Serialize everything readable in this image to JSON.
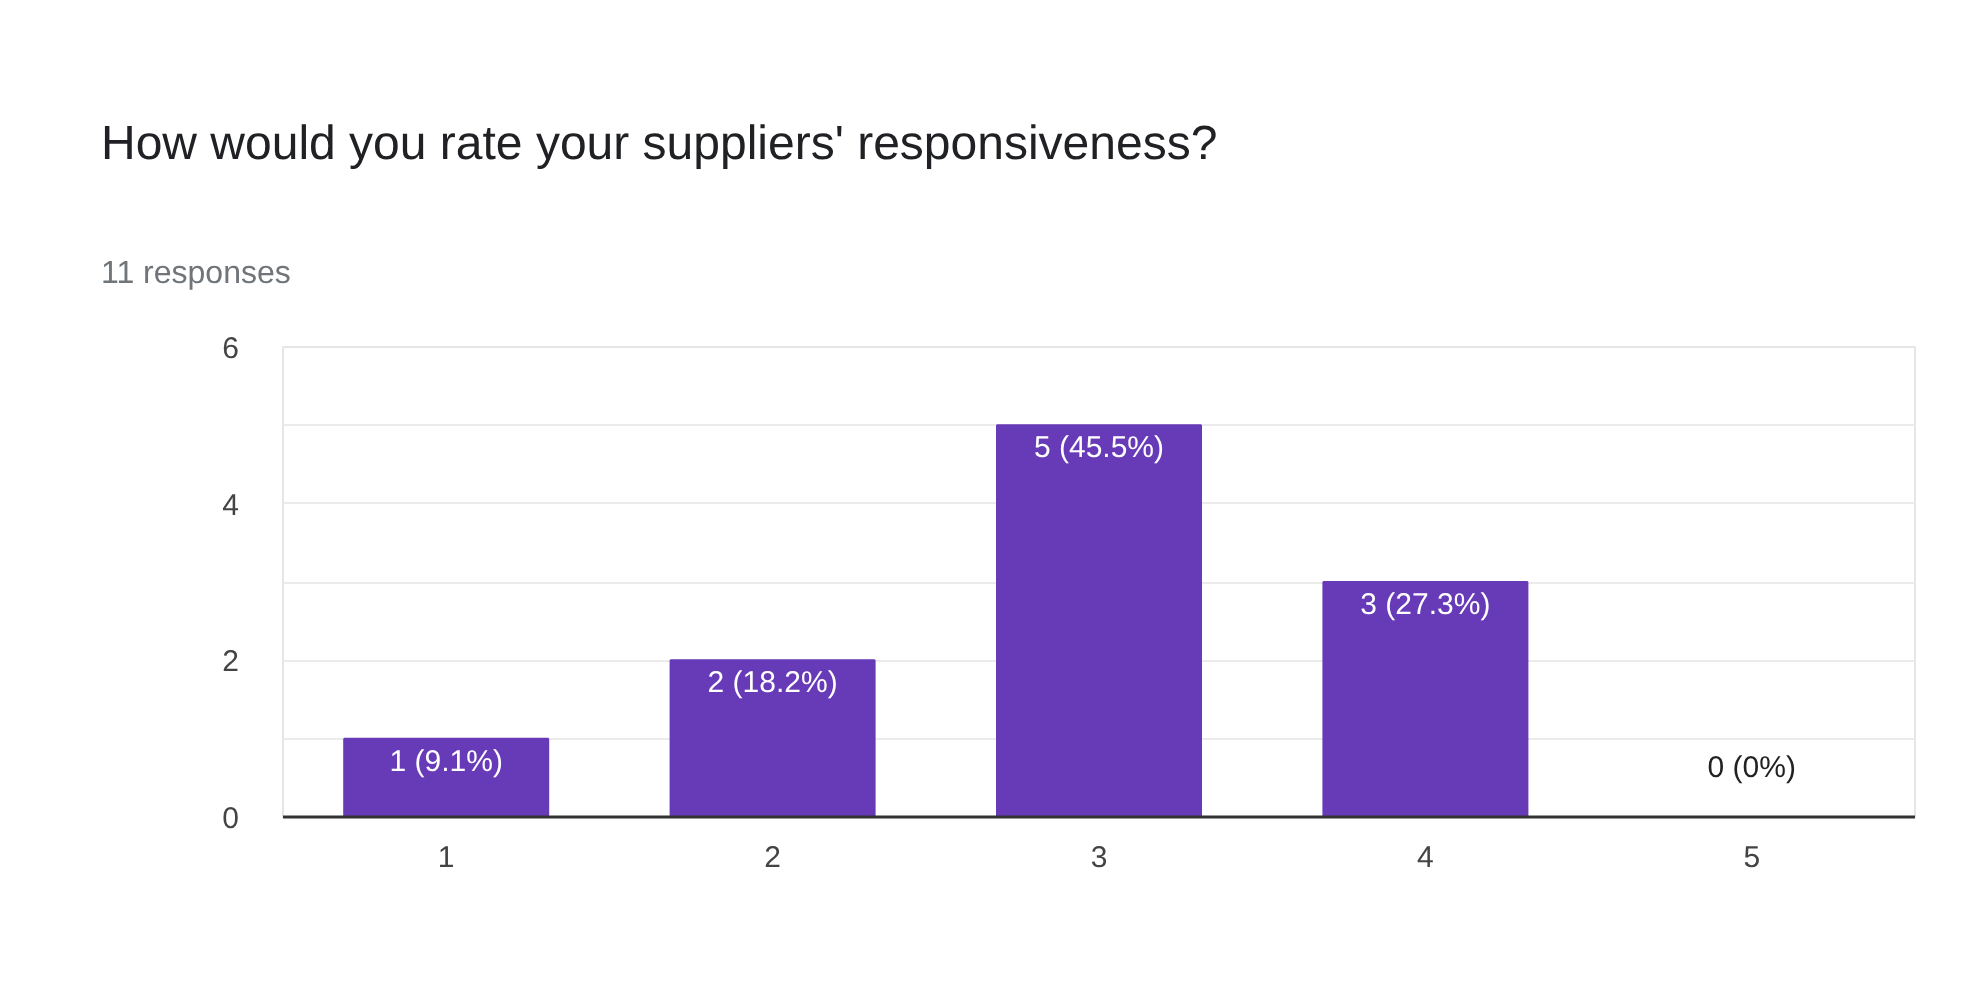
{
  "chart_data": {
    "type": "bar",
    "title": "How would you rate your suppliers' responsiveness?",
    "subtitle": "11 responses",
    "categories": [
      "1",
      "2",
      "3",
      "4",
      "5"
    ],
    "values": [
      1,
      2,
      5,
      3,
      0
    ],
    "color": "#673ab7",
    "value_labels": [
      "1 (9.1%)",
      "2 (18.2%)",
      "5 (45.5%)",
      "3 (27.3%)",
      "0 (0%)"
    ],
    "ylim": [
      0,
      6
    ],
    "yticks": [
      0,
      {
        "value": 1,
        "label": null
      },
      2,
      {
        "value": 3,
        "label": null
      },
      4,
      {
        "value": 5,
        "label": null
      },
      6
    ],
    "grid": "y"
  }
}
